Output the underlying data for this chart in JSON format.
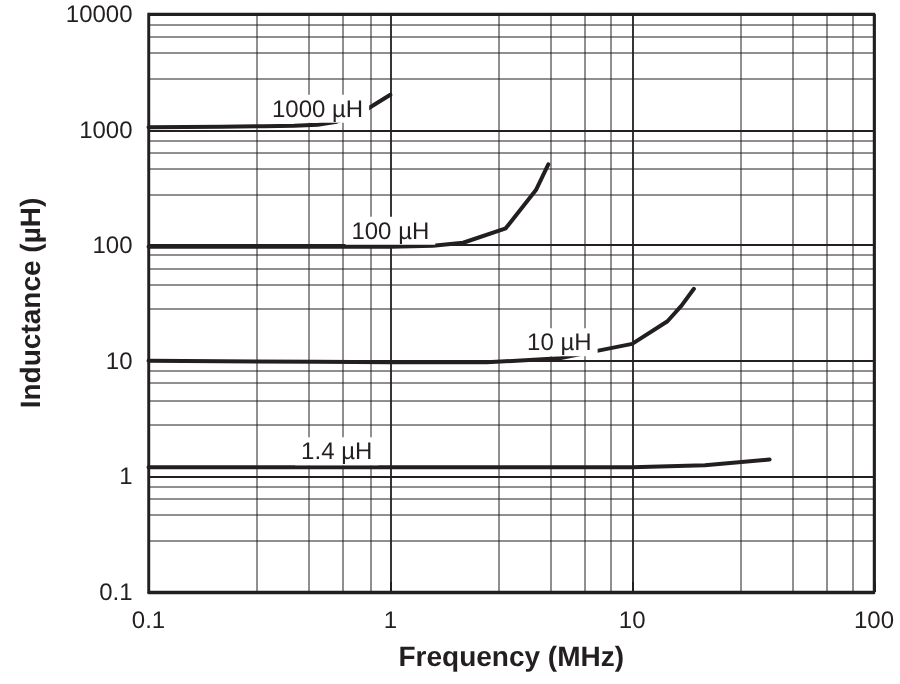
{
  "chart_data": {
    "type": "line",
    "xlabel": "Frequency (MHz)",
    "ylabel": "Inductance (µH)",
    "log": "xy",
    "grid": true,
    "legend": false,
    "marker": "none",
    "line_style": "solid",
    "xlim": [
      0.1,
      100
    ],
    "xticks": [
      0.1,
      1,
      10,
      100
    ],
    "ylim": [
      0.1,
      10000
    ],
    "yticks": [
      0.1,
      1,
      10,
      100,
      1000,
      10000
    ],
    "series": [
      {
        "name": "1000 µH",
        "color": "#231f20",
        "x": [
          0.1,
          0.2,
          0.3,
          0.4,
          0.5,
          0.6,
          0.8,
          1.0
        ],
        "values": [
          1050,
          1060,
          1070,
          1080,
          1100,
          1170,
          1500,
          2000
        ]
      },
      {
        "name": "100 µH",
        "color": "#231f20",
        "x": [
          0.1,
          0.2,
          0.3,
          0.4,
          0.6,
          1,
          1.5,
          2,
          3,
          4,
          4.5
        ],
        "values": [
          97,
          97,
          97,
          97,
          97,
          97,
          99,
          105,
          140,
          300,
          500
        ]
      },
      {
        "name": "10 µH",
        "color": "#231f20",
        "x": [
          0.1,
          0.5,
          1,
          2.5,
          5,
          10,
          14,
          16,
          18
        ],
        "values": [
          10,
          9.8,
          9.7,
          9.7,
          10.5,
          14,
          22,
          30,
          42
        ]
      },
      {
        "name": "1.4 µH",
        "color": "#231f20",
        "x": [
          0.1,
          0.2,
          0.3,
          0.4,
          0.6,
          1,
          10,
          20,
          37
        ],
        "values": [
          1.2,
          1.2,
          1.2,
          1.2,
          1.2,
          1.2,
          1.2,
          1.25,
          1.4
        ]
      }
    ]
  }
}
